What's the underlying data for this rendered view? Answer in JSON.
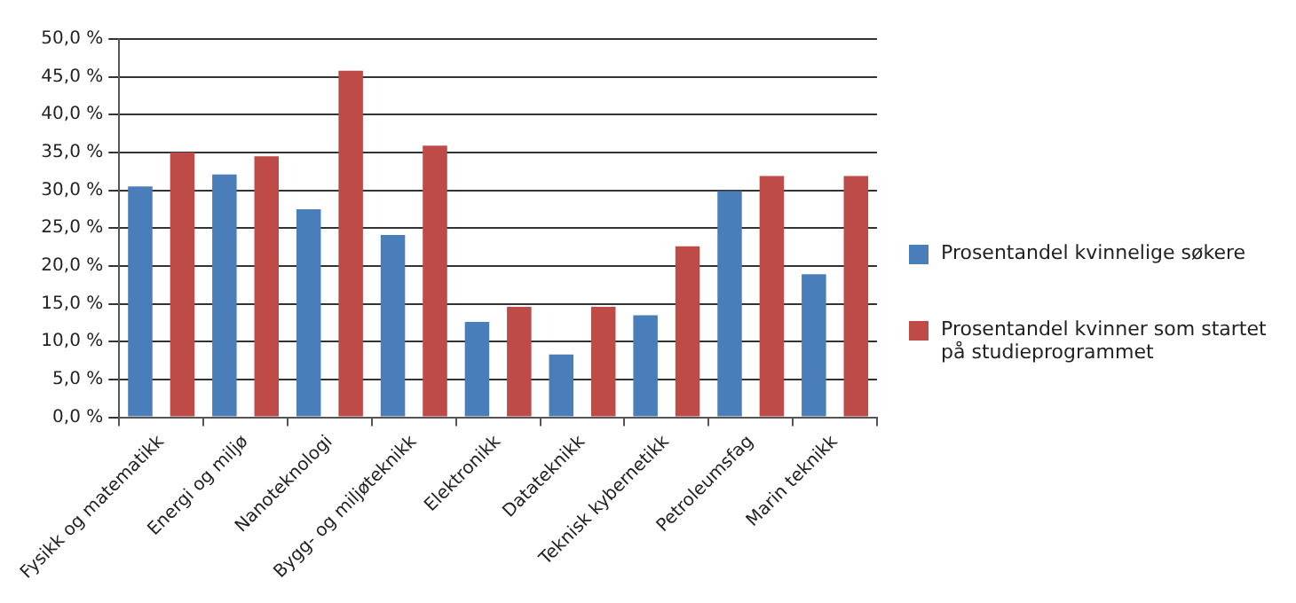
{
  "chart_data": {
    "type": "bar",
    "categories": [
      "Fysikk og matematikk",
      "Energi og miljø",
      "Nanoteknologi",
      "Bygg- og miljøteknikk",
      "Elektronikk",
      "Datateknikk",
      "Teknisk kybernetikk",
      "Petroleumsfag",
      "Marin teknikk"
    ],
    "series": [
      {
        "name": "Prosentandel kvinnelige søkere",
        "color": "#4a7ebb",
        "values": [
          30.5,
          32.1,
          27.5,
          24.1,
          12.6,
          8.3,
          13.5,
          29.9,
          18.9
        ]
      },
      {
        "name": "Prosentandel kvinner som startet på studieprogrammet",
        "color": "#be4b48",
        "values": [
          35.0,
          34.5,
          45.8,
          35.9,
          14.6,
          14.6,
          22.6,
          31.9,
          31.9
        ]
      }
    ],
    "ylim": [
      0,
      50
    ],
    "yticks": [
      {
        "value": 0,
        "label": "0,0 %"
      },
      {
        "value": 5,
        "label": "5,0 %"
      },
      {
        "value": 10,
        "label": "10,0 %"
      },
      {
        "value": 15,
        "label": "15,0 %"
      },
      {
        "value": 20,
        "label": "20,0 %"
      },
      {
        "value": 25,
        "label": "25,0 %"
      },
      {
        "value": 30,
        "label": "30,0 %"
      },
      {
        "value": 35,
        "label": "35,0 %"
      },
      {
        "value": 40,
        "label": "40,0 %"
      },
      {
        "value": 45,
        "label": "45,0 %"
      },
      {
        "value": 50,
        "label": "50,0 %"
      }
    ],
    "grid": "y",
    "legend": "right"
  }
}
